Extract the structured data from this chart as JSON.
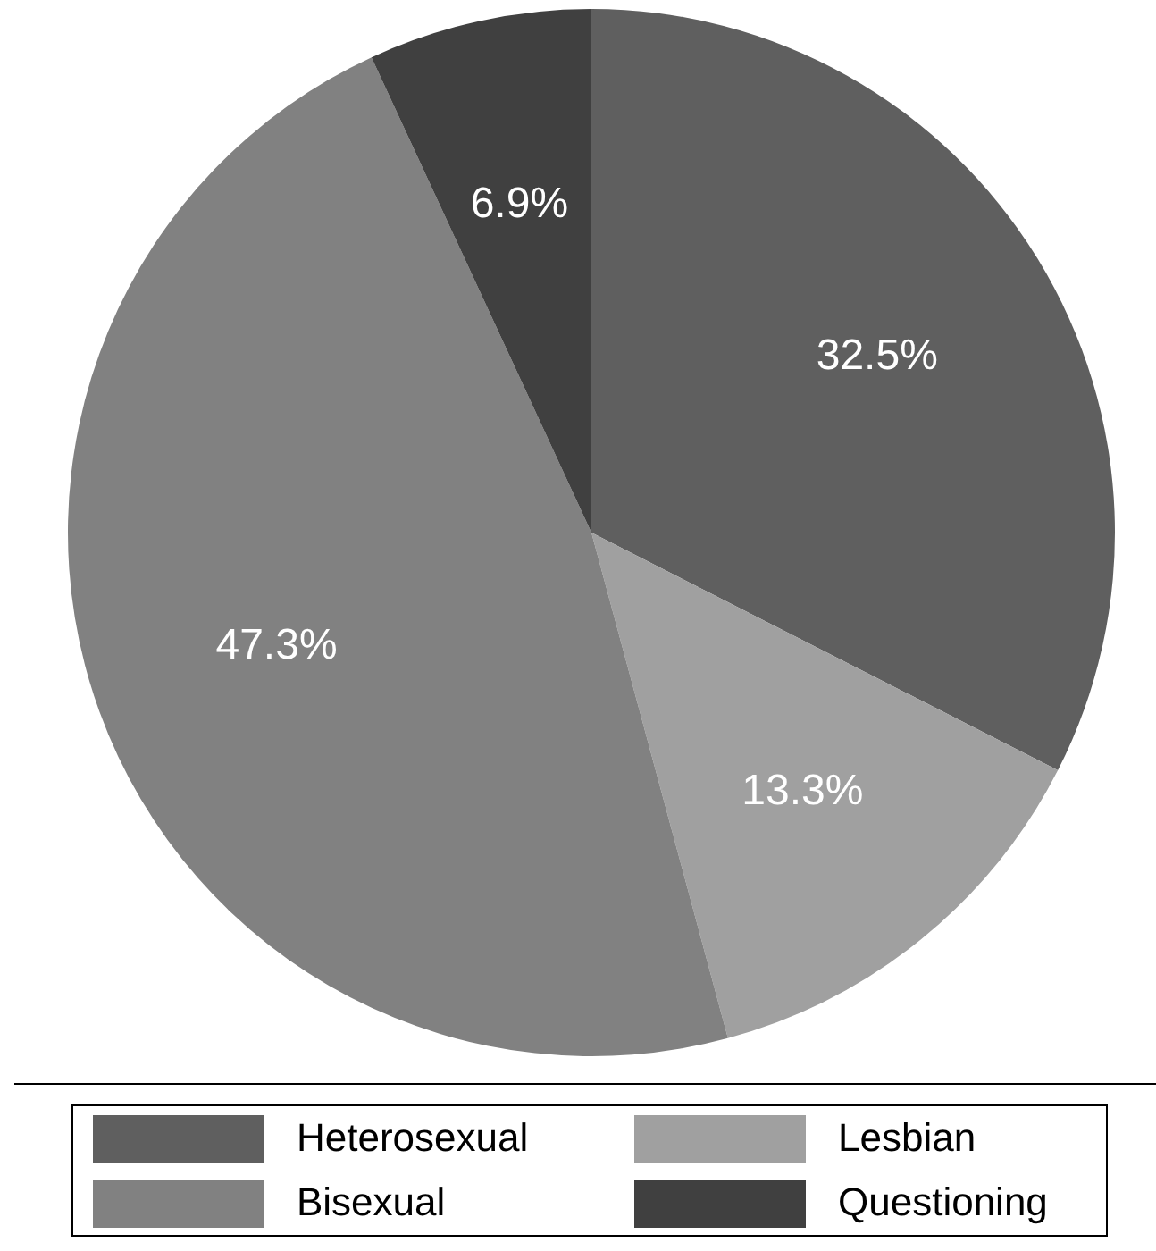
{
  "chart_data": {
    "type": "pie",
    "categories": [
      "Heterosexual",
      "Lesbian",
      "Bisexual",
      "Questioning"
    ],
    "values": [
      32.5,
      13.3,
      47.3,
      6.9
    ],
    "value_labels": [
      "32.5%",
      "13.3%",
      "47.3%",
      "6.9%"
    ],
    "colors": [
      "#5f5f5f",
      "#a0a0a0",
      "#818181",
      "#404040"
    ],
    "legend": "bottom"
  }
}
